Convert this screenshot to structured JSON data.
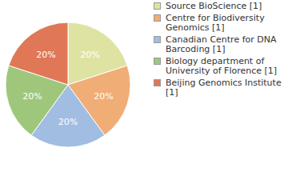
{
  "chart_data": {
    "type": "pie",
    "categories": [
      "Source BioScience [1]",
      "Centre for Biodiversity Genomics [1]",
      "Canadian Centre for DNA Barcoding [1]",
      "Biology department of University of Florence [1]",
      "Beijing Genomics Institute [1]"
    ],
    "values": [
      20,
      20,
      20,
      20,
      20
    ],
    "value_labels": [
      "20%",
      "20%",
      "20%",
      "20%",
      "20%"
    ],
    "colors": [
      "#dfe3a2",
      "#f0ad76",
      "#a2bde2",
      "#9fc77c",
      "#e07858"
    ],
    "data_labels": true,
    "legend": "right"
  }
}
